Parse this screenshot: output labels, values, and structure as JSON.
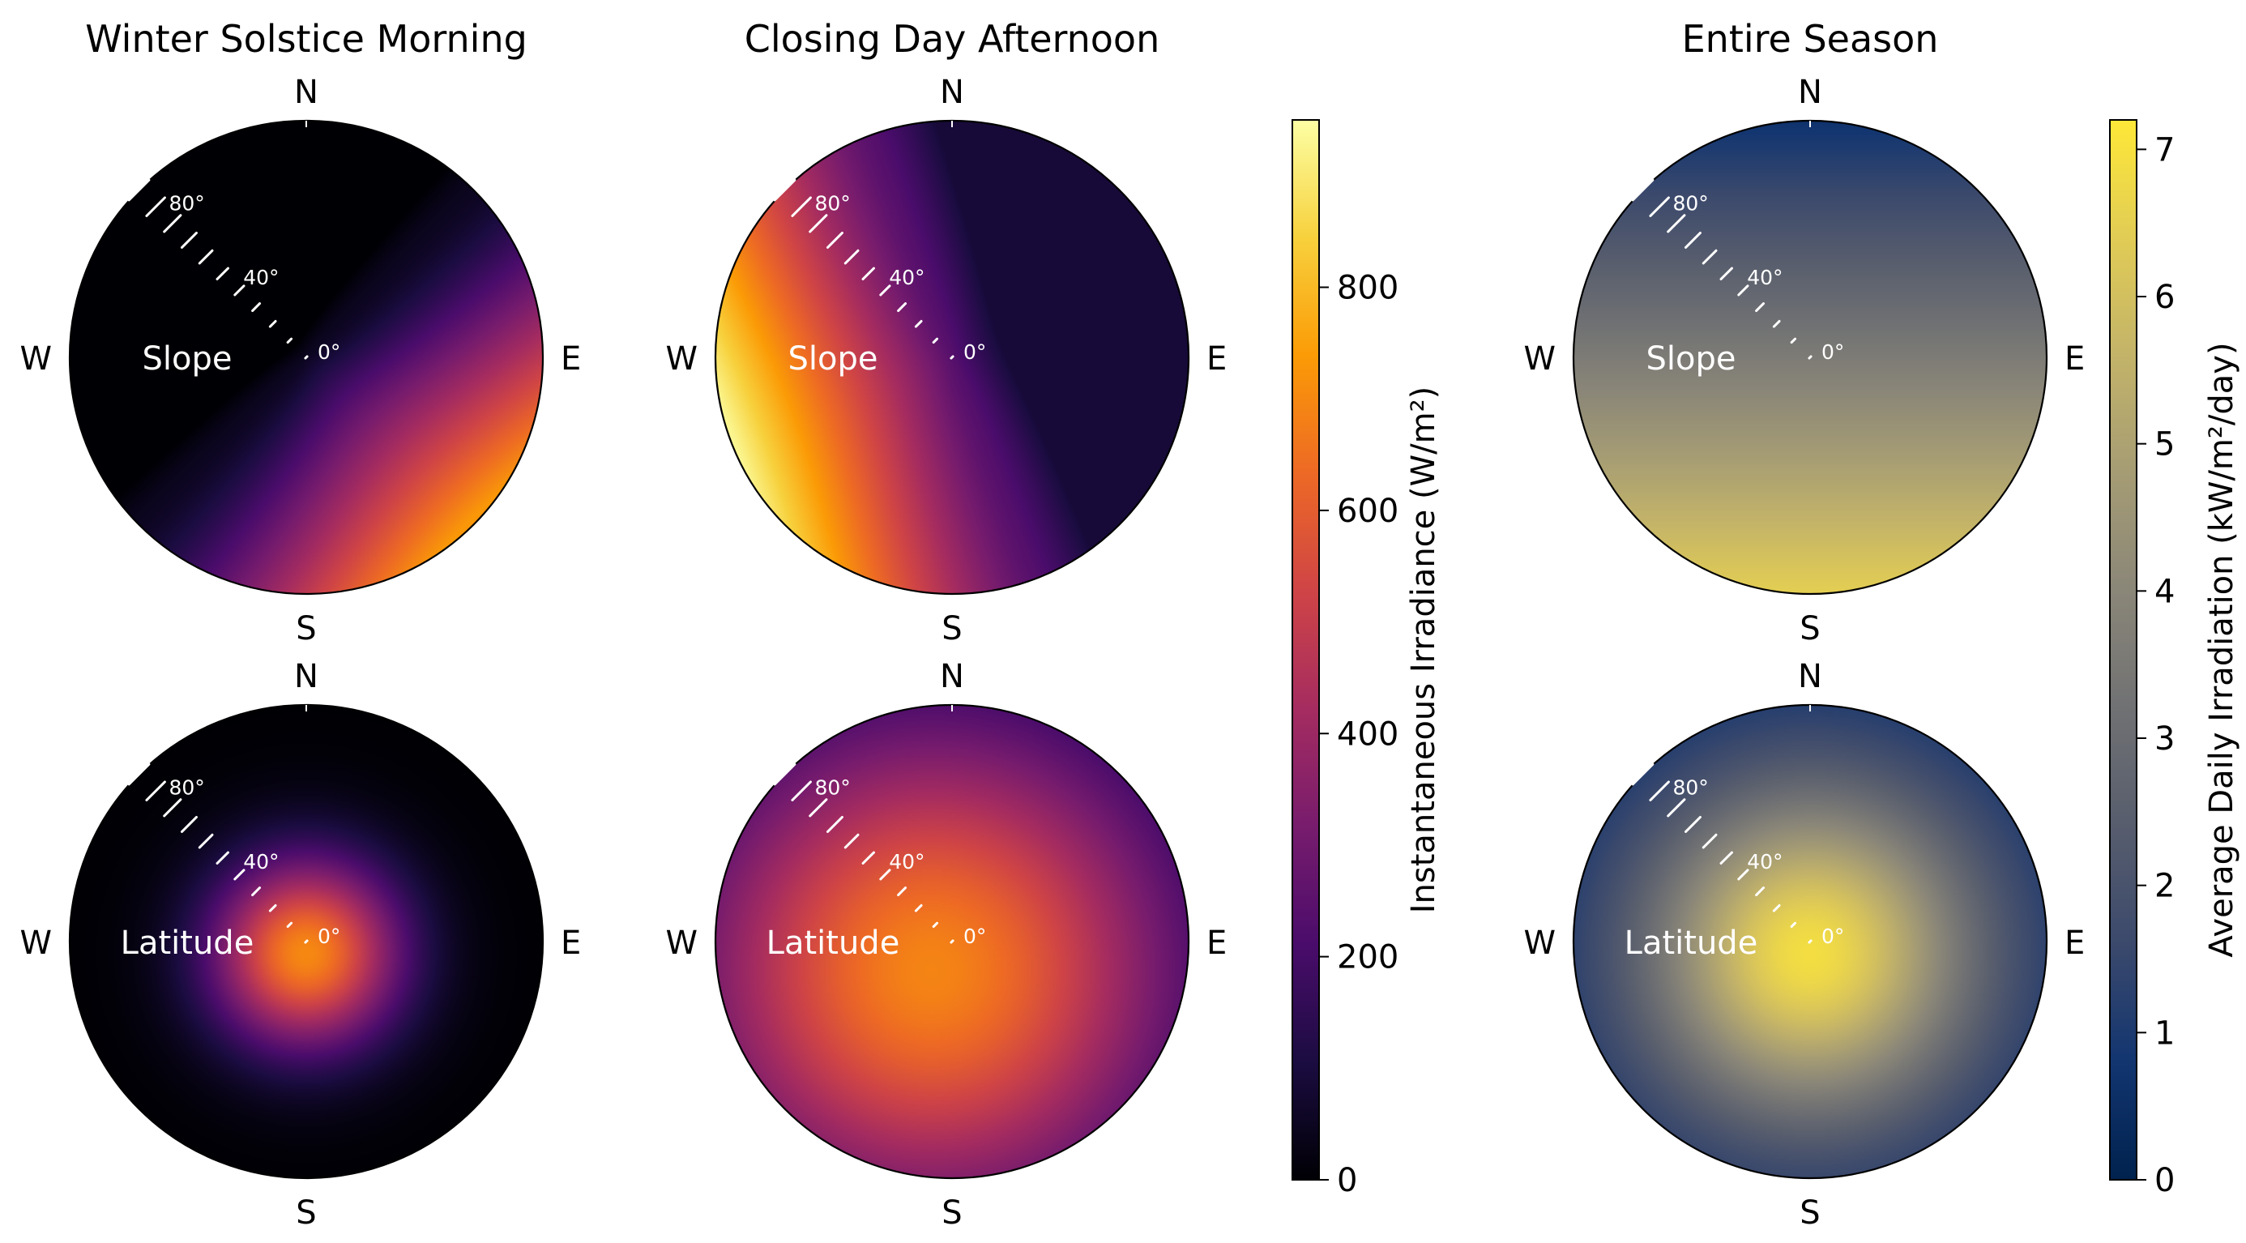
{
  "chart_data": [
    {
      "type": "heatmap",
      "projection": "polar",
      "title": "Winter Solstice Morning",
      "compass": [
        "N",
        "E",
        "S",
        "W"
      ],
      "angular_axis_label": "Slope",
      "radial_ticks": [
        {
          "value": 80,
          "label": "80°"
        },
        {
          "value": 40,
          "label": "40°"
        },
        {
          "value": 0,
          "label": "0°"
        }
      ],
      "colorbar": "irradiance",
      "field": {
        "kind": "directional",
        "direction_deg": 135,
        "baseline": 50,
        "gain": 700,
        "exp": 1.4,
        "min": 0,
        "peak": 730
      }
    },
    {
      "type": "heatmap",
      "projection": "polar",
      "title": "Closing Day Afternoon",
      "compass": [
        "N",
        "E",
        "S",
        "W"
      ],
      "angular_axis_label": "Slope",
      "radial_ticks": [
        {
          "value": 80,
          "label": "80°"
        },
        {
          "value": 40,
          "label": "40°"
        },
        {
          "value": 0,
          "label": "0°"
        }
      ],
      "colorbar": "irradiance",
      "field": {
        "kind": "directional",
        "direction_deg": 250,
        "baseline": 240,
        "gain": 700,
        "exp": 1.2,
        "min": 90,
        "peak": 930
      }
    },
    {
      "type": "heatmap",
      "projection": "polar",
      "title": "Entire Season",
      "compass": [
        "N",
        "E",
        "S",
        "W"
      ],
      "angular_axis_label": "Slope",
      "radial_ticks": [
        {
          "value": 80,
          "label": "80°"
        },
        {
          "value": 40,
          "label": "40°"
        },
        {
          "value": 0,
          "label": "0°"
        }
      ],
      "colorbar": "daily",
      "field": {
        "kind": "directional",
        "direction_deg": 180,
        "baseline": 3.6,
        "gain": 2.9,
        "exp": 1.0,
        "min": 0.5,
        "peak": 6.5
      }
    },
    {
      "type": "heatmap",
      "projection": "polar",
      "title": "",
      "compass": [
        "N",
        "E",
        "S",
        "W"
      ],
      "angular_axis_label": "Latitude",
      "radial_ticks": [
        {
          "value": 80,
          "label": "80°"
        },
        {
          "value": 40,
          "label": "40°"
        },
        {
          "value": 0,
          "label": "0°"
        }
      ],
      "colorbar": "irradiance",
      "field": {
        "kind": "blob",
        "center_r": 0.05,
        "center_theta_deg": 180,
        "peak": 700,
        "sigma": 0.28,
        "floor": 0
      }
    },
    {
      "type": "heatmap",
      "projection": "polar",
      "title": "",
      "compass": [
        "N",
        "E",
        "S",
        "W"
      ],
      "angular_axis_label": "Latitude",
      "radial_ticks": [
        {
          "value": 80,
          "label": "80°"
        },
        {
          "value": 40,
          "label": "40°"
        },
        {
          "value": 0,
          "label": "0°"
        }
      ],
      "colorbar": "irradiance",
      "field": {
        "kind": "blob",
        "center_r": 0.15,
        "center_theta_deg": 215,
        "peak": 690,
        "sigma": 0.75,
        "floor": 0
      }
    },
    {
      "type": "heatmap",
      "projection": "polar",
      "title": "",
      "compass": [
        "N",
        "E",
        "S",
        "W"
      ],
      "angular_axis_label": "Latitude",
      "radial_ticks": [
        {
          "value": 80,
          "label": "80°"
        },
        {
          "value": 40,
          "label": "40°"
        },
        {
          "value": 0,
          "label": "0°"
        }
      ],
      "colorbar": "daily",
      "field": {
        "kind": "blob",
        "center_r": 0.05,
        "center_theta_deg": 180,
        "peak": 6.9,
        "sigma": 0.5,
        "floor": 0.5
      }
    }
  ],
  "colorbars": {
    "irradiance": {
      "label": "Instantaneous Irradiance (W/m²)",
      "colormap": "inferno",
      "range": [
        0,
        950
      ],
      "ticks": [
        {
          "value": 0,
          "label": "0"
        },
        {
          "value": 200,
          "label": "200"
        },
        {
          "value": 400,
          "label": "400"
        },
        {
          "value": 600,
          "label": "600"
        },
        {
          "value": 800,
          "label": "800"
        }
      ],
      "colors": [
        "#000004",
        "#1b0c41",
        "#4a0c6b",
        "#781c6d",
        "#a52c60",
        "#cf4446",
        "#ed6925",
        "#fb9b06",
        "#f7d13d",
        "#fcffa4"
      ]
    },
    "daily": {
      "label": "Average Daily Irradiation (kW/m²/day)",
      "colormap": "cividis",
      "range": [
        0,
        7.2
      ],
      "ticks": [
        {
          "value": 0,
          "label": "0"
        },
        {
          "value": 1,
          "label": "1"
        },
        {
          "value": 2,
          "label": "2"
        },
        {
          "value": 3,
          "label": "3"
        },
        {
          "value": 4,
          "label": "4"
        },
        {
          "value": 5,
          "label": "5"
        },
        {
          "value": 6,
          "label": "6"
        },
        {
          "value": 7,
          "label": "7"
        }
      ],
      "colors": [
        "#00224e",
        "#123570",
        "#3b496c",
        "#575d6d",
        "#707173",
        "#8a8678",
        "#a59c74",
        "#c3b369",
        "#e1cc55",
        "#fee838"
      ]
    }
  }
}
